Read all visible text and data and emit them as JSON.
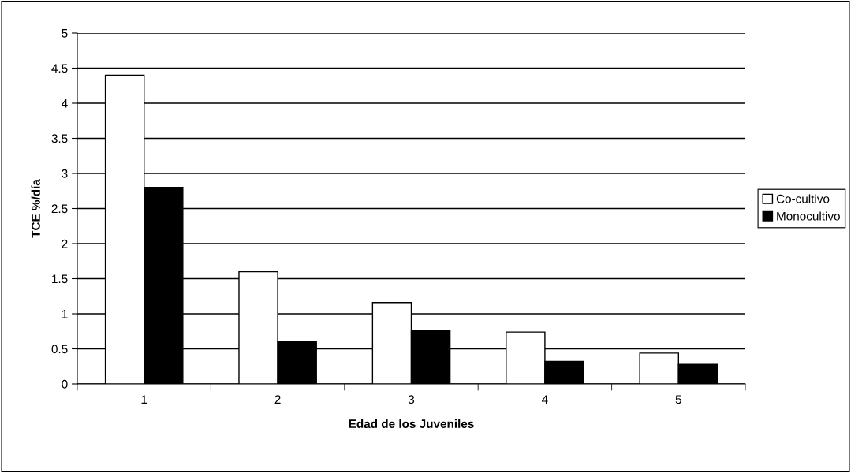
{
  "chart_data": {
    "type": "bar",
    "xlabel": "Edad de los Juveniles",
    "ylabel": "TCE %/día",
    "categories": [
      "1",
      "2",
      "3",
      "4",
      "5"
    ],
    "series": [
      {
        "name": "Co-cultivo",
        "color": "#ffffff",
        "values": [
          4.4,
          1.6,
          1.16,
          0.74,
          0.44
        ]
      },
      {
        "name": "Monocultivo",
        "color": "#000000",
        "values": [
          2.8,
          0.6,
          0.76,
          0.32,
          0.28
        ]
      }
    ],
    "ylim": [
      0,
      5
    ],
    "yticks": [
      0,
      0.5,
      1,
      1.5,
      2,
      2.5,
      3,
      3.5,
      4,
      4.5,
      5
    ],
    "grid": "y",
    "legend": "right"
  }
}
